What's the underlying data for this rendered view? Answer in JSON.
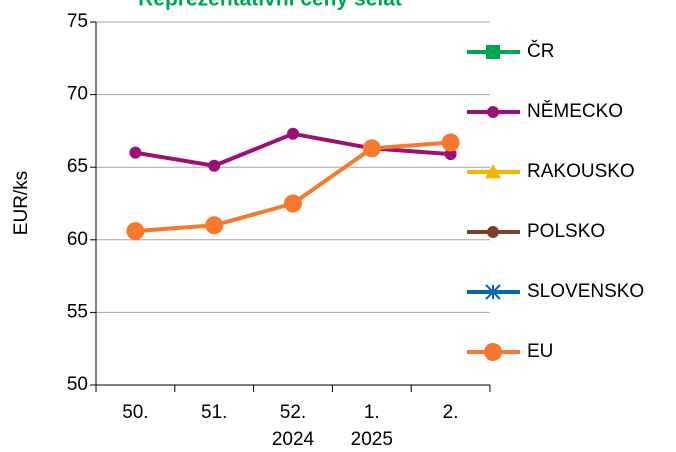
{
  "chart_data": {
    "type": "line",
    "title": "Reprezentativní ceny selat",
    "y_label": "EUR/ks",
    "categories": [
      [
        "50."
      ],
      [
        "51."
      ],
      [
        "52.",
        "2024"
      ],
      [
        "1.",
        "2025"
      ],
      [
        "2."
      ]
    ],
    "series": [
      {
        "name": "ČR",
        "color": "#00a550",
        "marker": "square",
        "marker_size": 7,
        "values": [
          null,
          null,
          null,
          null,
          null
        ]
      },
      {
        "name": "NĚMECKO",
        "color": "#9e0f73",
        "marker": "circle",
        "marker_size": 6,
        "values": [
          66.0,
          65.1,
          67.3,
          66.3,
          65.9
        ]
      },
      {
        "name": "RAKOUSKO",
        "color": "#f5b400",
        "marker": "triangle",
        "marker_size": 8,
        "values": [
          null,
          null,
          null,
          null,
          null
        ]
      },
      {
        "name": "POLSKO",
        "color": "#7a3f2a",
        "marker": "circle",
        "marker_size": 6,
        "values": [
          null,
          null,
          null,
          null,
          null
        ]
      },
      {
        "name": "SLOVENSKO",
        "color": "#0066b3",
        "marker": "star",
        "marker_size": 7,
        "values": [
          null,
          null,
          null,
          null,
          null
        ]
      },
      {
        "name": "EU",
        "color": "#f7782f",
        "marker": "circle",
        "marker_size": 9,
        "values": [
          60.6,
          61.0,
          62.5,
          66.3,
          66.7
        ]
      }
    ],
    "ylim": [
      50,
      75
    ],
    "yticks": [
      50,
      55,
      60,
      65,
      70,
      75
    ],
    "grid": true,
    "legend": "right"
  }
}
